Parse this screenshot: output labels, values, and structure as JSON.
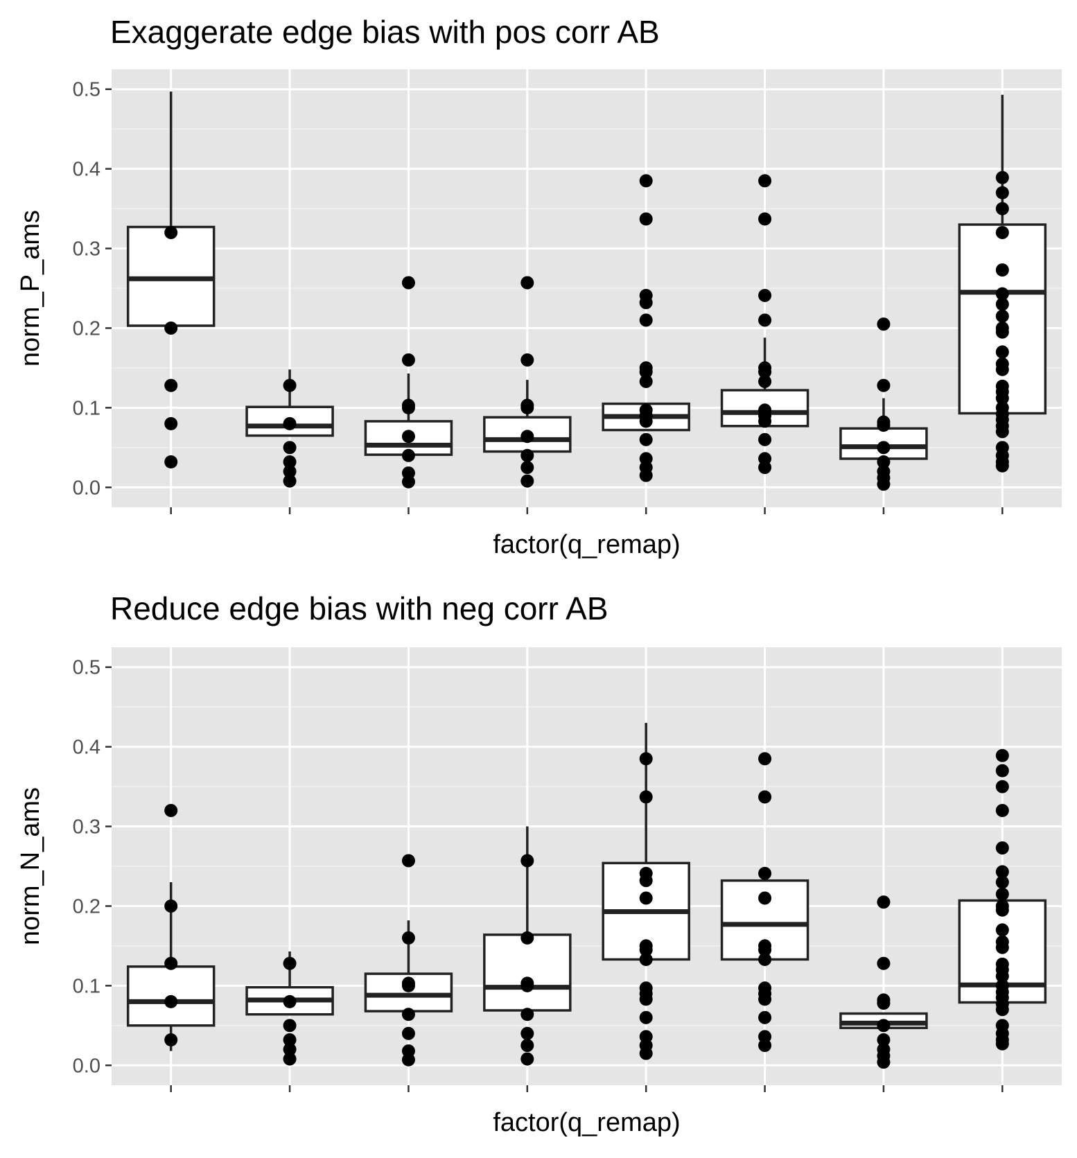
{
  "colors": {
    "panel_background": "#E5E5E5",
    "grid_major": "#FFFFFF",
    "grid_minor": "#F2F2F2",
    "box_line": "#222222",
    "box_fill": "#FFFFFF",
    "point": "#000000",
    "tick": "#333333",
    "tick_label": "#4D4D4D"
  },
  "chart_data": [
    {
      "type": "box",
      "title": "Exaggerate edge bias with pos corr AB",
      "xlabel": "factor(q_remap)",
      "ylabel": "norm_P_ams",
      "ylim": [
        -0.025,
        0.525
      ],
      "y_ticks": [
        0.0,
        0.1,
        0.2,
        0.3,
        0.4,
        0.5
      ],
      "y_tick_labels": [
        "0.0",
        "0.1",
        "0.2",
        "0.3",
        "0.4",
        "0.5"
      ],
      "x_tick_labels": [
        "",
        "",
        "",
        "",
        "",
        "",
        "",
        ""
      ],
      "grid": true,
      "series": [
        {
          "boxes": [
            {
              "q1": 0.203,
              "median": 0.262,
              "q3": 0.327,
              "whisker_low": 0.203,
              "whisker_high": 0.497,
              "points": [
                0.32,
                0.2,
                0.128,
                0.08,
                0.032
              ]
            },
            {
              "q1": 0.065,
              "median": 0.077,
              "q3": 0.101,
              "whisker_low": 0.065,
              "whisker_high": 0.148,
              "points": [
                0.128,
                0.08,
                0.05,
                0.032,
                0.02,
                0.008
              ]
            },
            {
              "q1": 0.041,
              "median": 0.053,
              "q3": 0.083,
              "whisker_low": 0.041,
              "whisker_high": 0.143,
              "points": [
                0.257,
                0.16,
                0.103,
                0.1,
                0.064,
                0.04,
                0.018,
                0.007
              ]
            },
            {
              "q1": 0.045,
              "median": 0.06,
              "q3": 0.088,
              "whisker_low": 0.045,
              "whisker_high": 0.135,
              "points": [
                0.257,
                0.16,
                0.103,
                0.1,
                0.064,
                0.04,
                0.025,
                0.008
              ]
            },
            {
              "q1": 0.072,
              "median": 0.089,
              "q3": 0.105,
              "whisker_low": 0.072,
              "whisker_high": 0.105,
              "points": [
                0.385,
                0.337,
                0.241,
                0.232,
                0.21,
                0.15,
                0.145,
                0.133,
                0.097,
                0.09,
                0.083,
                0.06,
                0.036,
                0.025,
                0.015
              ]
            },
            {
              "q1": 0.077,
              "median": 0.094,
              "q3": 0.122,
              "whisker_low": 0.077,
              "whisker_high": 0.188,
              "points": [
                0.385,
                0.337,
                0.241,
                0.21,
                0.15,
                0.145,
                0.133,
                0.097,
                0.09,
                0.083,
                0.06,
                0.036,
                0.025
              ]
            },
            {
              "q1": 0.036,
              "median": 0.051,
              "q3": 0.074,
              "whisker_low": 0.036,
              "whisker_high": 0.112,
              "points": [
                0.205,
                0.128,
                0.082,
                0.078,
                0.05,
                0.032,
                0.02,
                0.012,
                0.004
              ]
            },
            {
              "q1": 0.093,
              "median": 0.245,
              "q3": 0.33,
              "whisker_low": 0.093,
              "whisker_high": 0.493,
              "points": [
                0.389,
                0.37,
                0.35,
                0.32,
                0.273,
                0.243,
                0.23,
                0.215,
                0.2,
                0.195,
                0.17,
                0.155,
                0.148,
                0.127,
                0.12,
                0.112,
                0.1,
                0.092,
                0.085,
                0.077,
                0.07,
                0.05,
                0.04,
                0.032,
                0.027
              ]
            }
          ]
        }
      ]
    },
    {
      "type": "box",
      "title": "Reduce edge bias with neg corr AB",
      "xlabel": "factor(q_remap)",
      "ylabel": "norm_N_ams",
      "ylim": [
        -0.025,
        0.525
      ],
      "y_ticks": [
        0.0,
        0.1,
        0.2,
        0.3,
        0.4,
        0.5
      ],
      "y_tick_labels": [
        "0.0",
        "0.1",
        "0.2",
        "0.3",
        "0.4",
        "0.5"
      ],
      "x_tick_labels": [
        "",
        "",
        "",
        "",
        "",
        "",
        "",
        ""
      ],
      "grid": true,
      "series": [
        {
          "boxes": [
            {
              "q1": 0.05,
              "median": 0.08,
              "q3": 0.124,
              "whisker_low": 0.018,
              "whisker_high": 0.23,
              "points": [
                0.32,
                0.2,
                0.128,
                0.08,
                0.032
              ]
            },
            {
              "q1": 0.064,
              "median": 0.082,
              "q3": 0.098,
              "whisker_low": 0.064,
              "whisker_high": 0.143,
              "points": [
                0.128,
                0.08,
                0.05,
                0.032,
                0.02,
                0.008
              ]
            },
            {
              "q1": 0.068,
              "median": 0.088,
              "q3": 0.115,
              "whisker_low": 0.068,
              "whisker_high": 0.182,
              "points": [
                0.257,
                0.16,
                0.103,
                0.1,
                0.064,
                0.04,
                0.018,
                0.007
              ]
            },
            {
              "q1": 0.069,
              "median": 0.098,
              "q3": 0.164,
              "whisker_low": 0.069,
              "whisker_high": 0.3,
              "points": [
                0.257,
                0.16,
                0.103,
                0.1,
                0.064,
                0.04,
                0.025,
                0.008
              ]
            },
            {
              "q1": 0.133,
              "median": 0.193,
              "q3": 0.254,
              "whisker_low": 0.133,
              "whisker_high": 0.43,
              "points": [
                0.385,
                0.337,
                0.241,
                0.232,
                0.21,
                0.15,
                0.145,
                0.133,
                0.097,
                0.09,
                0.083,
                0.06,
                0.036,
                0.025,
                0.015
              ]
            },
            {
              "q1": 0.133,
              "median": 0.177,
              "q3": 0.232,
              "whisker_low": 0.133,
              "whisker_high": 0.232,
              "points": [
                0.385,
                0.337,
                0.241,
                0.21,
                0.15,
                0.145,
                0.133,
                0.097,
                0.09,
                0.083,
                0.06,
                0.036,
                0.025
              ]
            },
            {
              "q1": 0.047,
              "median": 0.053,
              "q3": 0.065,
              "whisker_low": 0.047,
              "whisker_high": 0.065,
              "points": [
                0.205,
                0.128,
                0.082,
                0.078,
                0.05,
                0.032,
                0.02,
                0.012,
                0.004
              ]
            },
            {
              "q1": 0.079,
              "median": 0.101,
              "q3": 0.207,
              "whisker_low": 0.079,
              "whisker_high": 0.207,
              "points": [
                0.389,
                0.37,
                0.35,
                0.32,
                0.273,
                0.243,
                0.23,
                0.215,
                0.2,
                0.195,
                0.17,
                0.155,
                0.148,
                0.127,
                0.12,
                0.112,
                0.1,
                0.092,
                0.085,
                0.077,
                0.07,
                0.05,
                0.04,
                0.032,
                0.027
              ]
            }
          ]
        }
      ]
    }
  ]
}
